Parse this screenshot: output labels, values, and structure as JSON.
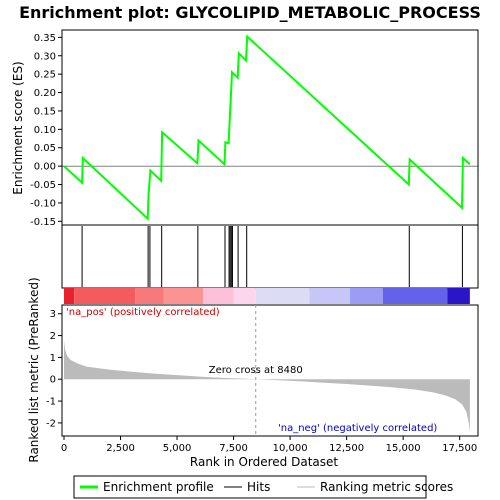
{
  "chart_data": {
    "type": "line",
    "title": "Enrichment plot: GLYCOLIPID_METABOLIC_PROCESS",
    "top_panel": {
      "ylabel": "Enrichment score (ES)",
      "ylim": [
        -0.16,
        0.37
      ],
      "yticks": [
        -0.15,
        -0.1,
        -0.05,
        0.0,
        0.05,
        0.1,
        0.15,
        0.2,
        0.25,
        0.3,
        0.35
      ],
      "ytick_labels": [
        "-0.15",
        "-0.10",
        "-0.05",
        "0.00",
        "0.05",
        "0.10",
        "0.15",
        "0.20",
        "0.25",
        "0.30",
        "0.35"
      ],
      "series": [
        {
          "name": "Enrichment profile",
          "color": "#00ff00",
          "x": [
            0,
            800,
            830,
            3700,
            3740,
            3820,
            4300,
            4340,
            5900,
            5950,
            7100,
            7140,
            7280,
            7330,
            7380,
            7430,
            7680,
            7730,
            8050,
            8100,
            15250,
            15290,
            17600,
            17640,
            17950
          ],
          "y": [
            0.0,
            -0.045,
            0.022,
            -0.143,
            -0.075,
            -0.012,
            -0.04,
            0.092,
            0.008,
            0.07,
            0.005,
            0.065,
            0.062,
            0.125,
            0.19,
            0.255,
            0.24,
            0.307,
            0.287,
            0.352,
            -0.05,
            0.018,
            -0.113,
            0.022,
            0.005
          ]
        }
      ]
    },
    "hits": [
      800,
      3720,
      3800,
      4320,
      5920,
      7120,
      7300,
      7350,
      7400,
      7450,
      7700,
      8080,
      15270,
      17620
    ],
    "bottom_panel": {
      "ylabel": "Ranked list metric (PreRanked)",
      "ylim": [
        -2.6,
        3.4
      ],
      "yticks": [
        -2,
        -1,
        0,
        1,
        2,
        3
      ],
      "ytick_labels": [
        "-2",
        "-1",
        "0",
        "1",
        "2",
        "3"
      ],
      "metric_curve": {
        "x": [
          0,
          50,
          150,
          300,
          600,
          1000,
          2000,
          3000,
          4000,
          5000,
          6000,
          7000,
          8480,
          9500,
          10500,
          11500,
          12500,
          13500,
          14500,
          15500,
          16300,
          16900,
          17300,
          17600,
          17800,
          17900,
          17950
        ],
        "y": [
          1.75,
          1.35,
          1.05,
          0.88,
          0.72,
          0.58,
          0.44,
          0.34,
          0.26,
          0.19,
          0.12,
          0.06,
          0.0,
          -0.05,
          -0.1,
          -0.16,
          -0.22,
          -0.29,
          -0.37,
          -0.47,
          -0.6,
          -0.75,
          -0.92,
          -1.15,
          -1.5,
          -2.0,
          -2.4
        ]
      },
      "zero_cross_label": "Zero cross at 8480",
      "zero_cross_x": 8480,
      "pos_label": "'na_pos' (positively correlated)",
      "neg_label": "'na_neg' (negatively correlated)"
    },
    "xlabel": "Rank in Ordered Dataset",
    "xlim": [
      0,
      18000
    ],
    "xticks": [
      0,
      2500,
      5000,
      7500,
      10000,
      12500,
      15000,
      17500
    ],
    "xtick_labels": [
      "0",
      "2,500",
      "5,000",
      "7,500",
      "10,000",
      "12,500",
      "15,000",
      "17,500"
    ],
    "color_bar": [
      {
        "x0": 0,
        "x1": 450,
        "color": "#e8212c"
      },
      {
        "x0": 450,
        "x1": 3150,
        "color": "#f55a5e"
      },
      {
        "x0": 3150,
        "x1": 4400,
        "color": "#f7797c"
      },
      {
        "x0": 4400,
        "x1": 6150,
        "color": "#fb9393"
      },
      {
        "x0": 6150,
        "x1": 7500,
        "color": "#fcc1d9"
      },
      {
        "x0": 7500,
        "x1": 8480,
        "color": "#fdd6ee"
      },
      {
        "x0": 8480,
        "x1": 10850,
        "color": "#dcdcf6"
      },
      {
        "x0": 10850,
        "x1": 12650,
        "color": "#c6c6f8"
      },
      {
        "x0": 12650,
        "x1": 14100,
        "color": "#9c9cf4"
      },
      {
        "x0": 14100,
        "x1": 16950,
        "color": "#6262ea"
      },
      {
        "x0": 16950,
        "x1": 17950,
        "color": "#2a16c8"
      }
    ],
    "legend": {
      "placement": "bottom",
      "items": [
        {
          "label": "Enrichment profile",
          "color": "#00ff00",
          "kind": "line-thick"
        },
        {
          "label": "Hits",
          "color": "#000000",
          "kind": "line"
        },
        {
          "label": "Ranking metric scores",
          "color": "#bbbbbb",
          "kind": "line"
        }
      ]
    }
  }
}
